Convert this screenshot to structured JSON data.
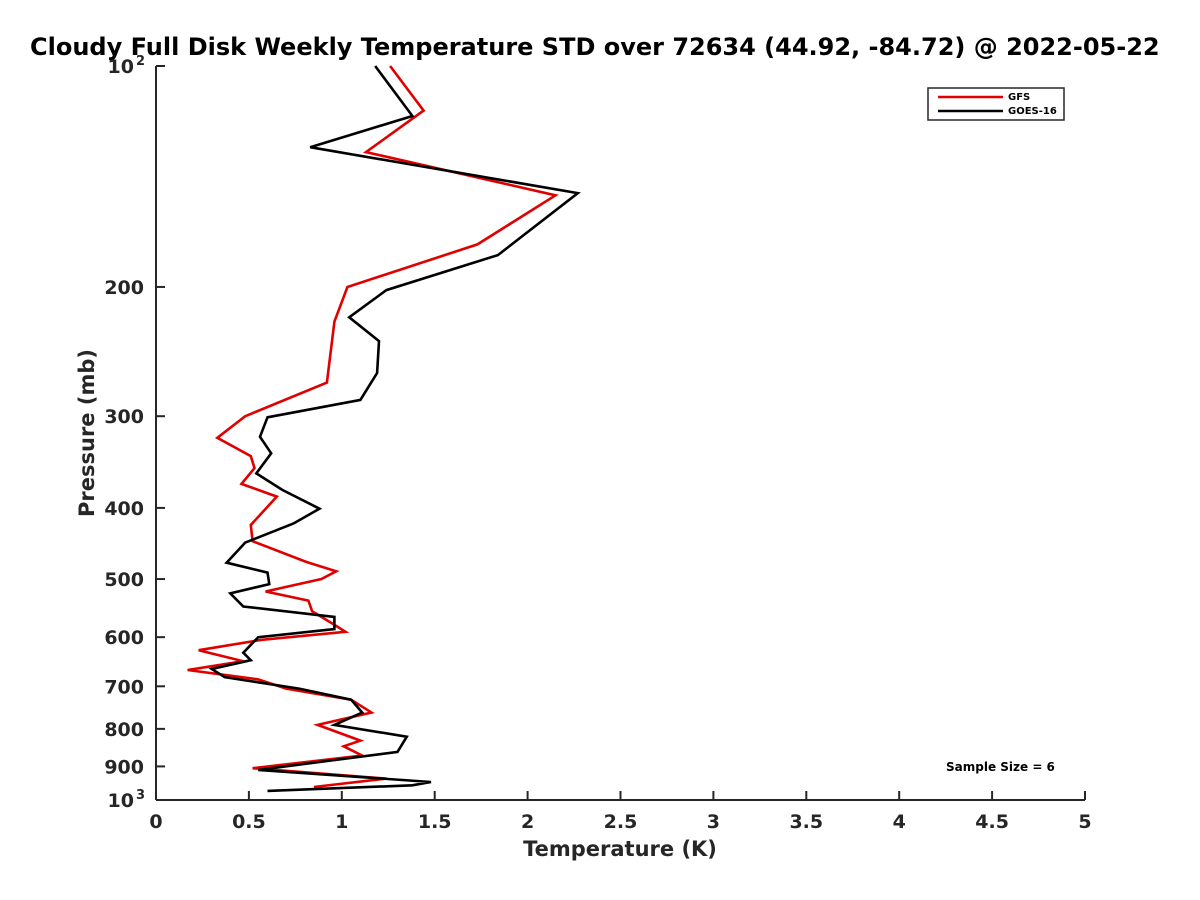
{
  "chart_data": {
    "type": "line",
    "title": "Cloudy Full Disk Weekly Temperature STD over 72634 (44.92, -84.72) @ 2022-05-22",
    "xlabel": "Temperature (K)",
    "ylabel": "Pressure (mb)",
    "xlim": [
      0,
      5
    ],
    "ylim": [
      100,
      1000
    ],
    "y_scale": "log",
    "y_reversed": true,
    "x_ticks": [
      {
        "value": 0,
        "label": "0"
      },
      {
        "value": 0.5,
        "label": "0.5"
      },
      {
        "value": 1,
        "label": "1"
      },
      {
        "value": 1.5,
        "label": "1.5"
      },
      {
        "value": 2,
        "label": "2"
      },
      {
        "value": 2.5,
        "label": "2.5"
      },
      {
        "value": 3,
        "label": "3"
      },
      {
        "value": 3.5,
        "label": "3.5"
      },
      {
        "value": 4,
        "label": "4"
      },
      {
        "value": 4.5,
        "label": "4.5"
      },
      {
        "value": 5,
        "label": "5"
      }
    ],
    "y_ticks": [
      {
        "value": 100,
        "label": "10",
        "exp": "2"
      },
      {
        "value": 200,
        "label": "200"
      },
      {
        "value": 300,
        "label": "300"
      },
      {
        "value": 400,
        "label": "400"
      },
      {
        "value": 500,
        "label": "500"
      },
      {
        "value": 600,
        "label": "600"
      },
      {
        "value": 700,
        "label": "700"
      },
      {
        "value": 800,
        "label": "800"
      },
      {
        "value": 900,
        "label": "900"
      },
      {
        "value": 1000,
        "label": "10",
        "exp": "3"
      }
    ],
    "grid": false,
    "legend_position": "top-right",
    "annotation": "Sample Size = 6",
    "series": [
      {
        "name": "GFS",
        "color": "#e00000",
        "points": [
          [
            1.26,
            100
          ],
          [
            1.44,
            115
          ],
          [
            1.13,
            131
          ],
          [
            2.15,
            150
          ],
          [
            1.73,
            175
          ],
          [
            1.03,
            200
          ],
          [
            0.96,
            223
          ],
          [
            0.92,
            270
          ],
          [
            0.48,
            300
          ],
          [
            0.33,
            321
          ],
          [
            0.51,
            340
          ],
          [
            0.53,
            353
          ],
          [
            0.46,
            371
          ],
          [
            0.65,
            386
          ],
          [
            0.51,
            422
          ],
          [
            0.52,
            444
          ],
          [
            0.81,
            474
          ],
          [
            0.97,
            488
          ],
          [
            0.89,
            500
          ],
          [
            0.59,
            520
          ],
          [
            0.82,
            535
          ],
          [
            0.84,
            553
          ],
          [
            0.95,
            575
          ],
          [
            1.02,
            590
          ],
          [
            0.57,
            605
          ],
          [
            0.23,
            625
          ],
          [
            0.47,
            647
          ],
          [
            0.17,
            665
          ],
          [
            0.55,
            685
          ],
          [
            0.7,
            705
          ],
          [
            1.05,
            730
          ],
          [
            1.16,
            760
          ],
          [
            0.87,
            790
          ],
          [
            1.1,
            830
          ],
          [
            1.01,
            845
          ],
          [
            1.11,
            870
          ],
          [
            0.52,
            905
          ],
          [
            1.24,
            935
          ],
          [
            0.85,
            960
          ]
        ]
      },
      {
        "name": "GOES-16",
        "color": "#000000",
        "points": [
          [
            1.18,
            100
          ],
          [
            1.38,
            117
          ],
          [
            0.83,
            129
          ],
          [
            2.27,
            149
          ],
          [
            1.84,
            181
          ],
          [
            1.24,
            202
          ],
          [
            1.04,
            220
          ],
          [
            1.2,
            237
          ],
          [
            1.19,
            262
          ],
          [
            1.1,
            285
          ],
          [
            0.6,
            301
          ],
          [
            0.56,
            320
          ],
          [
            0.62,
            337
          ],
          [
            0.54,
            359
          ],
          [
            0.68,
            378
          ],
          [
            0.88,
            401
          ],
          [
            0.74,
            420
          ],
          [
            0.48,
            446
          ],
          [
            0.38,
            475
          ],
          [
            0.6,
            490
          ],
          [
            0.61,
            508
          ],
          [
            0.4,
            523
          ],
          [
            0.47,
            545
          ],
          [
            0.96,
            563
          ],
          [
            0.96,
            585
          ],
          [
            0.55,
            600
          ],
          [
            0.47,
            630
          ],
          [
            0.51,
            645
          ],
          [
            0.3,
            663
          ],
          [
            0.37,
            680
          ],
          [
            0.77,
            705
          ],
          [
            1.05,
            730
          ],
          [
            1.11,
            760
          ],
          [
            0.96,
            790
          ],
          [
            1.35,
            820
          ],
          [
            1.3,
            860
          ],
          [
            0.55,
            910
          ],
          [
            1.48,
            945
          ],
          [
            1.38,
            955
          ],
          [
            0.6,
            972
          ]
        ]
      }
    ]
  }
}
